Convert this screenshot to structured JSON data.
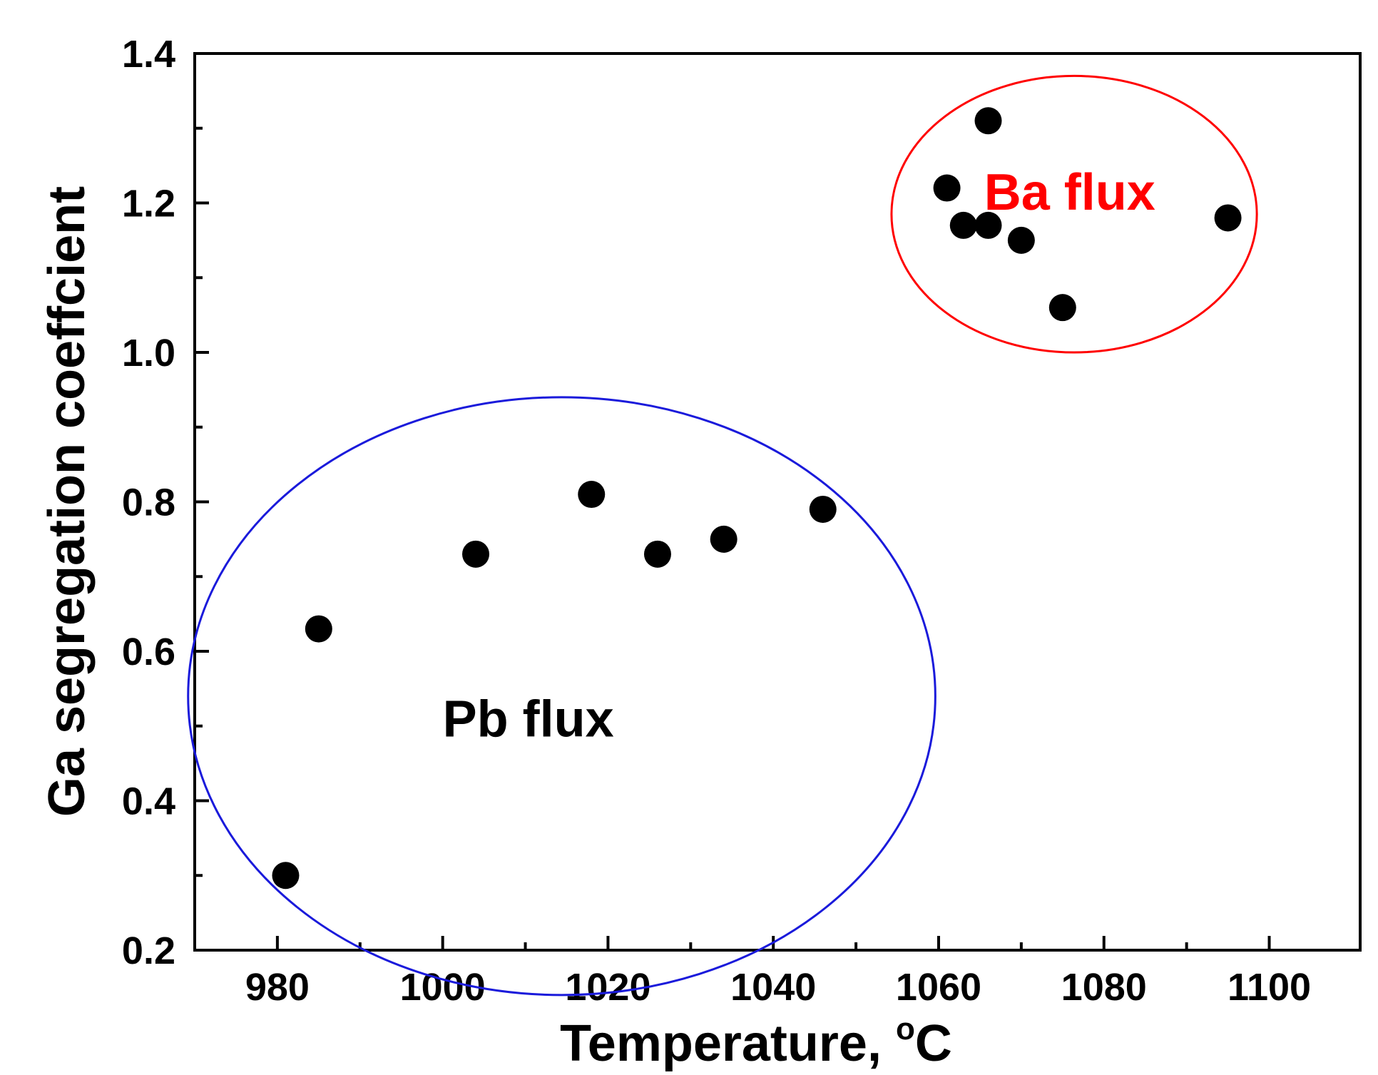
{
  "chart_data": {
    "type": "scatter",
    "xlabel": "Temperature, ",
    "xlabel_unit_sup": "o",
    "xlabel_unit": "C",
    "ylabel": "Ga segregation coeffcient",
    "xlim": [
      970,
      1111
    ],
    "ylim": [
      0.2,
      1.4
    ],
    "x_ticks_major": [
      980,
      1000,
      1020,
      1040,
      1060,
      1080,
      1100
    ],
    "x_tick_labels": [
      "980",
      "1000",
      "1020",
      "1040",
      "1060",
      "1080",
      "1100"
    ],
    "x_ticks_minor": [
      990,
      1010,
      1030,
      1050,
      1070,
      1090
    ],
    "y_ticks_major": [
      0.2,
      0.4,
      0.6,
      0.8,
      1.0,
      1.2,
      1.4
    ],
    "y_tick_labels": [
      "0.2",
      "0.4",
      "0.6",
      "0.8",
      "1.0",
      "1.2",
      "1.4"
    ],
    "y_ticks_minor": [
      0.3,
      0.5,
      0.7,
      0.9,
      1.1,
      1.3
    ],
    "grid": false,
    "legend": "none",
    "marker_color": "#000000",
    "series": [
      {
        "x": [
          981,
          985,
          1004,
          1018,
          1026,
          1034,
          1046,
          1061,
          1063,
          1066,
          1066,
          1070,
          1075,
          1095
        ],
        "y": [
          0.3,
          0.63,
          0.73,
          0.81,
          0.73,
          0.75,
          0.79,
          1.22,
          1.17,
          1.31,
          1.17,
          1.15,
          1.06,
          1.18
        ]
      }
    ],
    "annotations": [
      {
        "text": "Pb flux",
        "color": "#000000",
        "label_x": 1000,
        "label_y": 0.51,
        "ellipse_color": "#1a1adb",
        "ellipse_center": [
          1014.4,
          0.54
        ],
        "ellipse_x_radius": 45.2,
        "ellipse_y_radius": 0.4
      },
      {
        "text": "Ba flux",
        "color": "#ff0000",
        "label_x": 1065.5,
        "label_y": 1.215,
        "ellipse_color": "#ff0000",
        "ellipse_center": [
          1076.4,
          1.185
        ],
        "ellipse_x_radius": 22.1,
        "ellipse_y_radius": 0.185
      }
    ]
  }
}
